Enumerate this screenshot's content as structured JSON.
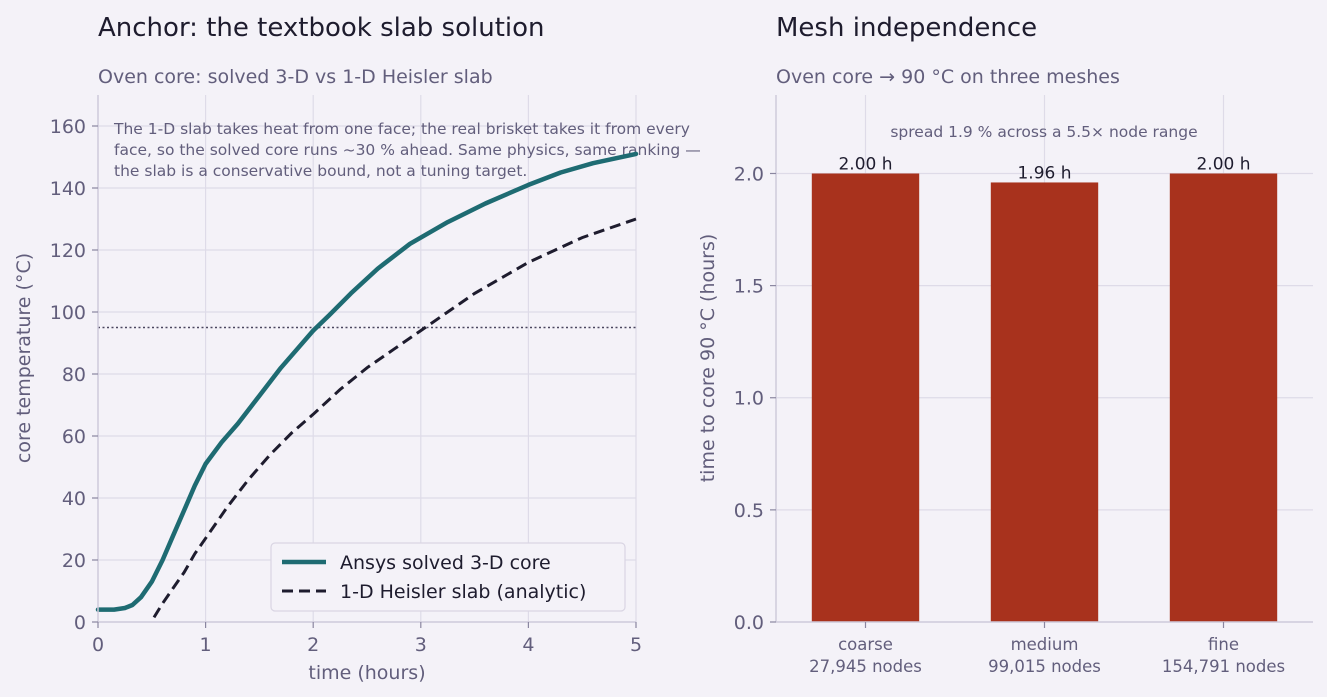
{
  "chart_data": [
    {
      "type": "line",
      "title": "Anchor: the textbook slab solution",
      "subtitle": "Oven core: solved 3-D vs 1-D Heisler slab",
      "xlabel": "time (hours)",
      "ylabel": "core temperature (°C)",
      "xlim": [
        0,
        5
      ],
      "ylim": [
        0,
        170
      ],
      "xticks": [
        "0",
        "1",
        "2",
        "3",
        "4",
        "5"
      ],
      "yticks": [
        "0",
        "20",
        "40",
        "60",
        "80",
        "100",
        "120",
        "140",
        "160"
      ],
      "grid": true,
      "legend_position": "lower-right",
      "reference_line": {
        "y": 95,
        "style": "dotted"
      },
      "annotation": [
        "The 1-D slab takes heat from one face; the real brisket takes it from every",
        "face, so the solved core runs ~30 % ahead. Same physics, same ranking —",
        "the slab is a conservative bound, not a tuning target."
      ],
      "series": [
        {
          "name": "Ansys solved 3-D core",
          "color": "#1e6b72",
          "style": "solid",
          "x": [
            0,
            0.15,
            0.25,
            0.32,
            0.4,
            0.5,
            0.6,
            0.7,
            0.8,
            0.9,
            1.0,
            1.15,
            1.3,
            1.5,
            1.7,
            1.85,
            2.0,
            2.15,
            2.35,
            2.6,
            2.9,
            3.25,
            3.6,
            4.0,
            4.3,
            4.6,
            5.0
          ],
          "y": [
            4,
            4,
            4.5,
            5.5,
            8,
            13,
            20,
            28,
            36,
            44,
            51,
            58,
            64,
            73,
            82,
            88,
            94,
            99,
            106,
            114,
            122,
            129,
            135,
            141,
            145,
            148,
            151
          ]
        },
        {
          "name": "1-D Heisler slab (analytic)",
          "color": "#1e1c2e",
          "style": "dashed",
          "x": [
            0.52,
            0.6,
            0.7,
            0.8,
            0.9,
            1.0,
            1.2,
            1.4,
            1.6,
            1.8,
            2.0,
            2.25,
            2.5,
            2.75,
            3.0,
            3.25,
            3.5,
            3.75,
            4.0,
            4.25,
            4.5,
            4.75,
            5.0
          ],
          "y": [
            1.5,
            6,
            11,
            16,
            22,
            27,
            37,
            46,
            54,
            61,
            67,
            75,
            82,
            88,
            94,
            100,
            106,
            111,
            116,
            120,
            124,
            127,
            130
          ]
        }
      ]
    },
    {
      "type": "bar",
      "title": "Mesh independence",
      "subtitle": "Oven core → 90 °C on three meshes",
      "ylabel": "time to core 90 °C (hours)",
      "ylim": [
        0,
        2.35
      ],
      "yticks": [
        "0.0",
        "0.5",
        "1.0",
        "1.5",
        "2.0"
      ],
      "grid": true,
      "bar_color": "#a8321d",
      "annotation": "spread 1.9 % across a 5.5× node range",
      "categories": [
        "coarse",
        "medium",
        "fine"
      ],
      "category_sublabels": [
        "27,945 nodes",
        "99,015 nodes",
        "154,791 nodes"
      ],
      "values": [
        2.0,
        1.96,
        2.0
      ],
      "data_labels": [
        "2.00 h",
        "1.96 h",
        "2.00 h"
      ]
    }
  ]
}
